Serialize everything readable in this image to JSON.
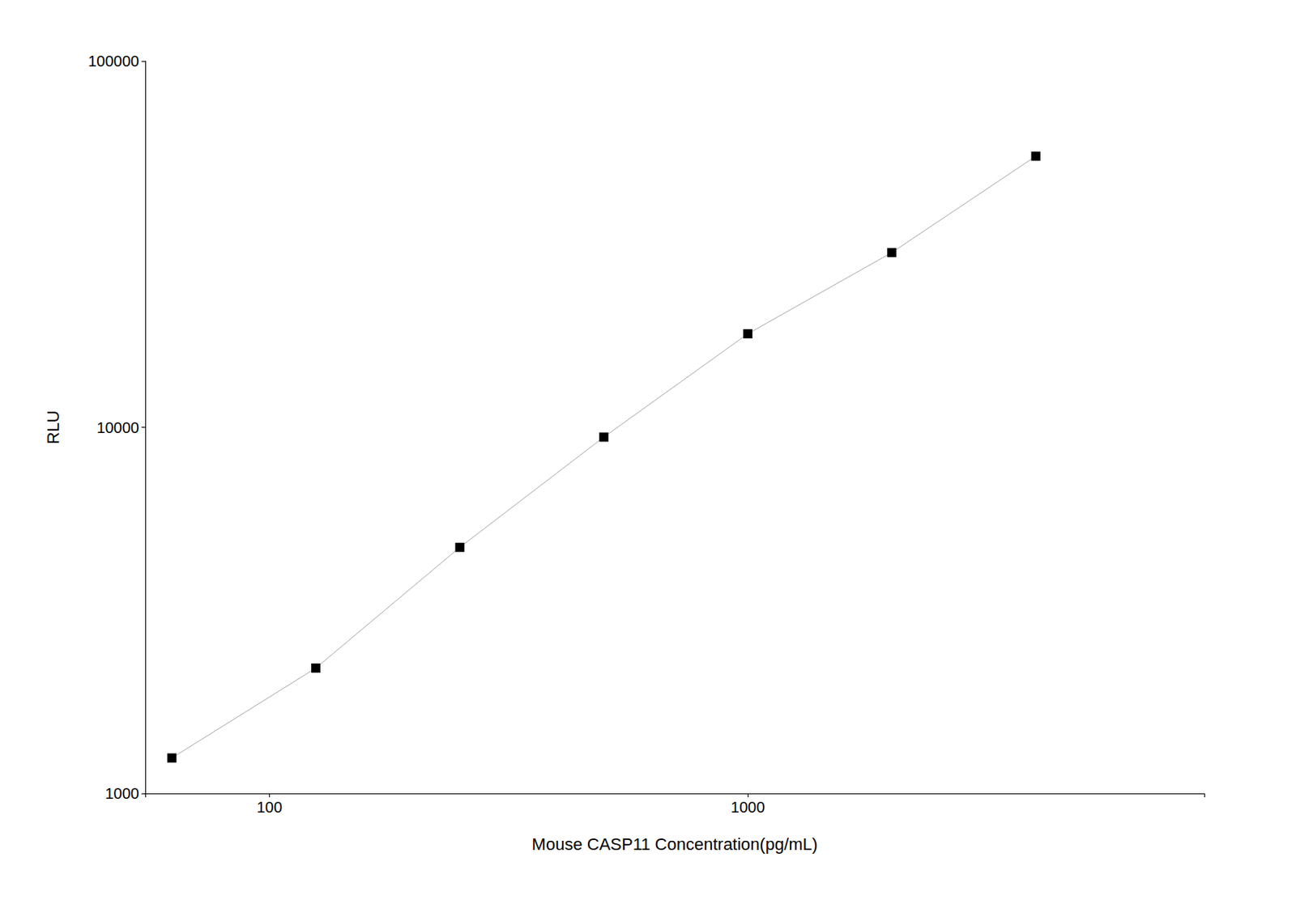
{
  "chart_data": {
    "type": "line",
    "xlabel": "Mouse CASP11 Concentration(pg/mL)",
    "ylabel": "RLU",
    "x": [
      62.5,
      125,
      250,
      500,
      1000,
      2000,
      4000
    ],
    "values": [
      1250,
      2200,
      4700,
      9400,
      18000,
      30000,
      55000
    ],
    "color": "#aaaaaa",
    "colors": [
      "#000000",
      "#000000",
      "#000000",
      "#000000",
      "#000000",
      "#000000",
      "#000000"
    ],
    "marker": "square",
    "xlim": [
      55,
      9000
    ],
    "ylim": [
      1000,
      100000
    ],
    "xticks": [
      100,
      1000
    ],
    "yticks": [
      1000,
      10000,
      100000
    ],
    "log": true,
    "grid": false
  }
}
